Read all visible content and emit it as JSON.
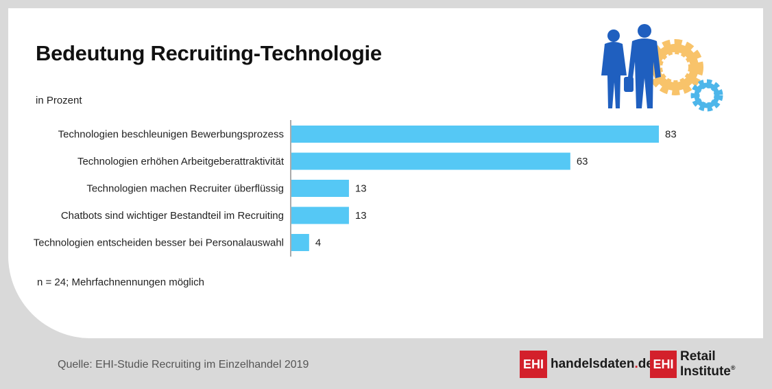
{
  "title": "Bedeutung Recruiting-Technologie",
  "unit_label": "in Prozent",
  "note": "n = 24; Mehrfachnennungen möglich",
  "source": "Quelle: EHI-Studie Recruiting im Einzelhandel 2019",
  "logos": {
    "left_box": "EHI",
    "left_name": "handelsdaten",
    "left_dot": ".",
    "left_tld": "de",
    "right_box": "EHI",
    "right_name": "Retail Institute",
    "right_mark": "®"
  },
  "colors": {
    "bar": "#55c8f5",
    "axis": "#555555",
    "brand_red": "#d3202b",
    "figure_blue": "#1f5fbf",
    "gear_orange": "#f8c36a",
    "gear_blue": "#4db6ea"
  },
  "icons": [
    "business-people-icon",
    "gear-large-icon",
    "gear-small-icon"
  ],
  "chart_data": {
    "type": "bar",
    "orientation": "horizontal",
    "categories": [
      "Technologien beschleunigen Bewerbungsprozess",
      "Technologien erhöhen Arbeitgeberattraktivität",
      "Technologien machen Recruiter überflüssig",
      "Chatbots sind wichtiger Bestandteil im Recruiting",
      "Technologien entscheiden besser bei Personalauswahl"
    ],
    "values": [
      83,
      63,
      13,
      13,
      4
    ],
    "xlim": [
      0,
      83
    ],
    "grid": false,
    "legend": "none"
  }
}
